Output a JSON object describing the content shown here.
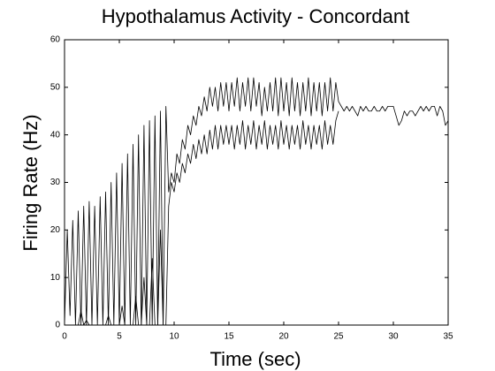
{
  "chart_data": {
    "type": "line",
    "title": "Hypothalamus Activity - Concordant",
    "xlabel": "Time (sec)",
    "ylabel": "Firing Rate (Hz)",
    "xlim": [
      0,
      35
    ],
    "ylim": [
      0,
      60
    ],
    "xticks": [
      0,
      5,
      10,
      15,
      20,
      25,
      30,
      35
    ],
    "yticks": [
      0,
      10,
      20,
      30,
      40,
      50,
      60
    ],
    "grid": false,
    "x": [
      0,
      0.25,
      0.5,
      0.75,
      1,
      1.25,
      1.5,
      1.75,
      2,
      2.25,
      2.5,
      2.75,
      3,
      3.25,
      3.5,
      3.75,
      4,
      4.25,
      4.5,
      4.75,
      5,
      5.25,
      5.5,
      5.75,
      6,
      6.25,
      6.5,
      6.75,
      7,
      7.25,
      7.5,
      7.75,
      8,
      8.25,
      8.5,
      8.75,
      9,
      9.25,
      9.5,
      9.75,
      10,
      10.25,
      10.5,
      10.75,
      11,
      11.25,
      11.5,
      11.75,
      12,
      12.25,
      12.5,
      12.75,
      13,
      13.25,
      13.5,
      13.75,
      14,
      14.25,
      14.5,
      14.75,
      15,
      15.25,
      15.5,
      15.75,
      16,
      16.25,
      16.5,
      16.75,
      17,
      17.25,
      17.5,
      17.75,
      18,
      18.25,
      18.5,
      18.75,
      19,
      19.25,
      19.5,
      19.75,
      20,
      20.25,
      20.5,
      20.75,
      21,
      21.25,
      21.5,
      21.75,
      22,
      22.25,
      22.5,
      22.75,
      23,
      23.25,
      23.5,
      23.75,
      24,
      24.25,
      24.5,
      24.75,
      25,
      25.25,
      25.5,
      25.75,
      26,
      26.25,
      26.5,
      26.75,
      27,
      27.25,
      27.5,
      27.75,
      28,
      28.25,
      28.5,
      28.75,
      29,
      29.25,
      29.5,
      29.75,
      30,
      30.25,
      30.5,
      30.75,
      31,
      31.25,
      31.5,
      31.75,
      32,
      32.25,
      32.5,
      32.75,
      33,
      33.25,
      33.5,
      33.75,
      34,
      34.25,
      34.5,
      34.75,
      35
    ],
    "series": [
      {
        "color": "#000000",
        "values": [
          0,
          20,
          2,
          22,
          0,
          24,
          0,
          25,
          0,
          26,
          0,
          25,
          0,
          27,
          0,
          28,
          0,
          30,
          0,
          32,
          0,
          34,
          0,
          36,
          0,
          38,
          0,
          40,
          0,
          42,
          0,
          43,
          0,
          44,
          0,
          45,
          0,
          46,
          28,
          32,
          30,
          36,
          34,
          39,
          37,
          42,
          40,
          44,
          42,
          46,
          44,
          48,
          45,
          50,
          46,
          50,
          45,
          51,
          46,
          51,
          45,
          51,
          46,
          52,
          45,
          51,
          46,
          52,
          45,
          52,
          46,
          51,
          44,
          50,
          45,
          51,
          45,
          52,
          44,
          52,
          45,
          51,
          44,
          52,
          45,
          51,
          44,
          51,
          45,
          52,
          44,
          51,
          45,
          51,
          44,
          51,
          45,
          52,
          45,
          51,
          47,
          46,
          45,
          46,
          45,
          46,
          45,
          44,
          46,
          45,
          46,
          45,
          45,
          46,
          45,
          45,
          46,
          45,
          46,
          46,
          46,
          44,
          42,
          43,
          45,
          44,
          45,
          45,
          44,
          45,
          46,
          45,
          46,
          45,
          46,
          46,
          44,
          46,
          45,
          42,
          43
        ]
      },
      {
        "color": "#000000",
        "values": [
          0,
          0,
          0,
          0,
          0,
          0,
          3,
          0,
          1,
          0,
          0,
          0,
          0,
          0,
          0,
          0,
          2,
          0,
          0,
          0,
          0,
          4,
          0,
          0,
          0,
          0,
          6,
          0,
          0,
          10,
          0,
          0,
          14,
          0,
          0,
          20,
          0,
          0,
          25,
          30,
          28,
          32,
          30,
          34,
          32,
          36,
          34,
          38,
          35,
          39,
          36,
          40,
          36,
          41,
          37,
          42,
          37,
          42,
          38,
          42,
          38,
          42,
          37,
          42,
          38,
          43,
          37,
          42,
          38,
          43,
          37,
          42,
          38,
          43,
          37,
          42,
          38,
          42,
          37,
          43,
          38,
          42,
          37,
          42,
          38,
          42,
          37,
          43,
          38,
          42,
          37,
          42,
          38,
          42,
          37,
          43,
          38,
          42,
          38,
          43,
          45,
          null,
          null,
          null,
          null,
          null,
          null,
          null,
          null,
          null,
          null,
          null,
          null,
          null,
          null,
          null,
          null,
          null,
          null,
          null,
          null,
          null,
          null,
          null,
          null,
          null,
          null,
          null,
          null,
          null,
          null,
          null,
          null,
          null,
          null,
          null,
          null,
          null,
          null,
          null,
          null
        ]
      }
    ]
  }
}
